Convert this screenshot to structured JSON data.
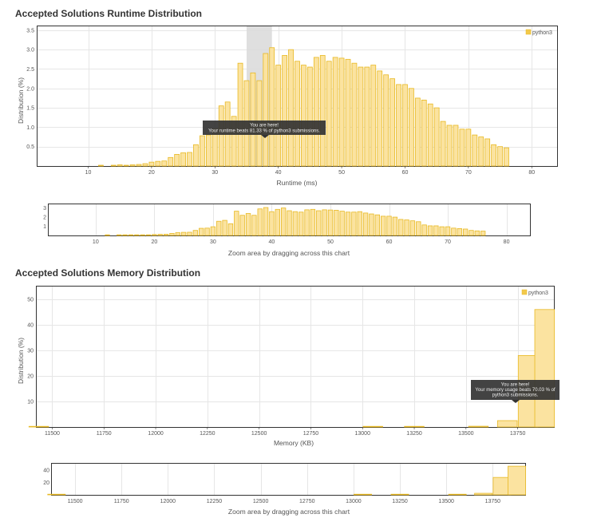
{
  "colors": {
    "bar_fill": "#FBE3A0",
    "bar_stroke": "#E8B923",
    "legend_fill": "#F2C94C",
    "tooltip_bg": "#333333",
    "highlight": "#D9D9D9",
    "grid": "#E6E6E6",
    "axis": "#333333"
  },
  "runtime": {
    "section_title": "Accepted Solutions Runtime Distribution",
    "nav_hint": "Zoom area by dragging across this chart",
    "tooltip": {
      "line1": "You are here!",
      "line2": "Your runtime beats 81.33 % of python3 submissions."
    }
  },
  "memory": {
    "section_title": "Accepted Solutions Memory Distribution",
    "nav_hint": "Zoom area by dragging across this chart",
    "tooltip": {
      "line1": "You are here!",
      "line2": "Your memory usage beats 70.03 % of",
      "line3": "python3 submissions."
    }
  },
  "chart_data": [
    {
      "id": "runtime",
      "type": "bar",
      "xlabel": "Runtime (ms)",
      "ylabel": "Distribution (%)",
      "xlim": [
        2,
        84
      ],
      "ylim": [
        0,
        3.6
      ],
      "xticks": [
        10,
        20,
        30,
        40,
        50,
        60,
        70,
        80
      ],
      "yticks": [
        0.5,
        1.0,
        1.5,
        2.0,
        2.5,
        3.0,
        3.5
      ],
      "yticklabels": [
        "0.5",
        "1.0",
        "1.5",
        "2.0",
        "2.5",
        "3.0",
        "3.5"
      ],
      "legend": "python3",
      "highlight": [
        35,
        39
      ],
      "marker_x": 38,
      "bin_width": 0.75,
      "x": [
        12,
        14,
        15,
        16,
        17,
        18,
        19,
        20,
        21,
        22,
        23,
        24,
        25,
        26,
        27,
        28,
        29,
        30,
        31,
        32,
        33,
        34,
        35,
        36,
        37,
        38,
        39,
        40,
        41,
        42,
        43,
        44,
        45,
        46,
        47,
        48,
        49,
        50,
        51,
        52,
        53,
        54,
        55,
        56,
        57,
        58,
        59,
        60,
        61,
        62,
        63,
        64,
        65,
        66,
        67,
        68,
        69,
        70,
        71,
        72,
        73,
        74,
        75,
        76
      ],
      "values": [
        0.02,
        0.02,
        0.03,
        0.02,
        0.03,
        0.04,
        0.06,
        0.1,
        0.12,
        0.13,
        0.22,
        0.3,
        0.34,
        0.35,
        0.55,
        0.78,
        0.8,
        0.95,
        1.55,
        1.65,
        1.28,
        2.65,
        2.2,
        2.4,
        2.2,
        2.9,
        3.05,
        2.6,
        2.85,
        3.0,
        2.7,
        2.6,
        2.55,
        2.8,
        2.85,
        2.7,
        2.8,
        2.78,
        2.75,
        2.65,
        2.55,
        2.55,
        2.6,
        2.45,
        2.35,
        2.25,
        2.1,
        2.1,
        2.0,
        1.75,
        1.7,
        1.6,
        1.5,
        1.15,
        1.05,
        1.05,
        0.95,
        0.95,
        0.8,
        0.75,
        0.7,
        0.55,
        0.5,
        0.47
      ]
    },
    {
      "id": "runtime_nav",
      "type": "bar",
      "xlim": [
        2,
        84
      ],
      "ylim": [
        0,
        3.4
      ],
      "xticks": [
        10,
        20,
        30,
        40,
        50,
        60,
        70,
        80
      ],
      "yticks": [
        1,
        2,
        3
      ],
      "yticklabels": [
        "1",
        "2",
        "3"
      ],
      "bin_width": 0.75,
      "x": [
        12,
        14,
        15,
        16,
        17,
        18,
        19,
        20,
        21,
        22,
        23,
        24,
        25,
        26,
        27,
        28,
        29,
        30,
        31,
        32,
        33,
        34,
        35,
        36,
        37,
        38,
        39,
        40,
        41,
        42,
        43,
        44,
        45,
        46,
        47,
        48,
        49,
        50,
        51,
        52,
        53,
        54,
        55,
        56,
        57,
        58,
        59,
        60,
        61,
        62,
        63,
        64,
        65,
        66,
        67,
        68,
        69,
        70,
        71,
        72,
        73,
        74,
        75,
        76
      ],
      "values": [
        0.02,
        0.02,
        0.03,
        0.02,
        0.03,
        0.04,
        0.06,
        0.1,
        0.12,
        0.13,
        0.22,
        0.3,
        0.34,
        0.35,
        0.55,
        0.78,
        0.8,
        0.95,
        1.55,
        1.65,
        1.28,
        2.65,
        2.2,
        2.4,
        2.2,
        2.9,
        3.05,
        2.6,
        2.85,
        3.0,
        2.7,
        2.6,
        2.55,
        2.8,
        2.85,
        2.7,
        2.8,
        2.78,
        2.75,
        2.65,
        2.55,
        2.55,
        2.6,
        2.45,
        2.35,
        2.25,
        2.1,
        2.1,
        2.0,
        1.75,
        1.7,
        1.6,
        1.5,
        1.15,
        1.05,
        1.05,
        0.95,
        0.95,
        0.8,
        0.75,
        0.7,
        0.55,
        0.5,
        0.47
      ]
    },
    {
      "id": "memory",
      "type": "bar",
      "xlabel": "Memory (KB)",
      "ylabel": "Distribution (%)",
      "xlim": [
        11425,
        13925
      ],
      "ylim": [
        0,
        55
      ],
      "xticks": [
        11500,
        11750,
        12000,
        12250,
        12500,
        12750,
        13000,
        13250,
        13500,
        13750
      ],
      "yticks": [
        10,
        20,
        30,
        40,
        50
      ],
      "yticklabels": [
        "10",
        "20",
        "30",
        "40",
        "50"
      ],
      "legend": "python3",
      "marker_x": 13775,
      "bin_width": 95,
      "x": [
        11435,
        13050,
        13250,
        13560,
        13700,
        13800,
        13880
      ],
      "values": [
        0.2,
        0.2,
        0.2,
        0.3,
        2.5,
        28,
        46
      ]
    },
    {
      "id": "memory_nav",
      "type": "bar",
      "xlim": [
        11375,
        13925
      ],
      "ylim": [
        0,
        50
      ],
      "xticks": [
        11500,
        11750,
        12000,
        12250,
        12500,
        12750,
        13000,
        13250,
        13500,
        13750
      ],
      "yticks": [
        20,
        40
      ],
      "yticklabels": [
        "20",
        "40"
      ],
      "bin_width": 95,
      "x": [
        11400,
        13050,
        13250,
        13560,
        13700,
        13800,
        13880
      ],
      "values": [
        0.3,
        0.3,
        0.3,
        0.5,
        2.5,
        28,
        46
      ]
    }
  ]
}
